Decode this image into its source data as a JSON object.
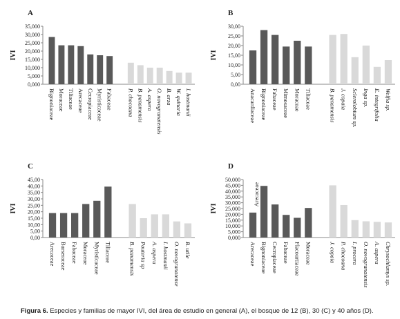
{
  "chart_data": [
    {
      "type": "bar",
      "title": "A",
      "ylabel": "IVI",
      "categories": [
        "Bignoniaceae",
        "Moraceae",
        "Tiliaceae",
        "Arecaceae",
        "Cecropiaceae",
        "Myristicaceae",
        "Fabaceae",
        "P. chocoana",
        "B. panamensis",
        "A. aspera",
        "O. novogranatensis",
        "B. arza",
        "W. quinaria",
        "I. hostmanii"
      ],
      "values": [
        28.5,
        23.5,
        23.5,
        23,
        18,
        17.5,
        17,
        13,
        11.5,
        10,
        10,
        8,
        7,
        7
      ],
      "colors": [
        "#595959",
        "#595959",
        "#595959",
        "#595959",
        "#595959",
        "#595959",
        "#595959",
        "#d9d9d9",
        "#d9d9d9",
        "#d9d9d9",
        "#d9d9d9",
        "#d9d9d9",
        "#d9d9d9",
        "#d9d9d9"
      ],
      "ylim": [
        0,
        35
      ],
      "yticks": [
        {
          "value": 0,
          "label": "0,000"
        },
        {
          "value": 5,
          "label": "5,000"
        },
        {
          "value": 10,
          "label": "10,000"
        },
        {
          "value": 15,
          "label": "15,000"
        },
        {
          "value": 20,
          "label": "20,000"
        },
        {
          "value": 25,
          "label": "25,000"
        },
        {
          "value": 30,
          "label": "30,000"
        },
        {
          "value": 35,
          "label": "35,000"
        }
      ]
    },
    {
      "type": "bar",
      "title": "B",
      "ylabel": "IVI",
      "categories": [
        "Anacardiaceae",
        "Bignoniaceae",
        "Fabaceae",
        "Mimosaceae",
        "Moraceae",
        "Tiliaceae",
        "B. panamensis",
        "J. copaia",
        "Sclerolobium sp.",
        "Inga sp.",
        "E. integrifolia",
        "Welfia sp."
      ],
      "values": [
        17.5,
        28,
        25.5,
        19.5,
        22.5,
        19.5,
        25.5,
        26,
        14,
        20,
        9,
        12.5
      ],
      "colors": [
        "#595959",
        "#595959",
        "#595959",
        "#595959",
        "#595959",
        "#595959",
        "#d9d9d9",
        "#d9d9d9",
        "#d9d9d9",
        "#d9d9d9",
        "#d9d9d9",
        "#d9d9d9"
      ],
      "ylim": [
        0,
        30
      ],
      "yticks": [
        {
          "value": 0,
          "label": "0,00"
        },
        {
          "value": 5,
          "label": "5,00"
        },
        {
          "value": 10,
          "label": "10,00"
        },
        {
          "value": 15,
          "label": "15,00"
        },
        {
          "value": 20,
          "label": "20,00"
        },
        {
          "value": 25,
          "label": "25,00"
        },
        {
          "value": 30,
          "label": "30,00"
        }
      ]
    },
    {
      "type": "bar",
      "title": "C",
      "ylabel": "IVI",
      "categories": [
        "Arecaceae",
        "Burseraceae",
        "Fabaceae",
        "Moraceae",
        "Myristicaceae",
        "Tiliaceae",
        "B. panamensis",
        "Pouteria sp",
        "A. aspera",
        "I. hostmanii",
        "O. novogranatense",
        "B. utile"
      ],
      "values": [
        19,
        19,
        19,
        26,
        28.5,
        39.5,
        26,
        15,
        18,
        18,
        12.5,
        11
      ],
      "colors": [
        "#595959",
        "#595959",
        "#595959",
        "#595959",
        "#595959",
        "#595959",
        "#d9d9d9",
        "#d9d9d9",
        "#d9d9d9",
        "#d9d9d9",
        "#d9d9d9",
        "#d9d9d9"
      ],
      "ylim": [
        0,
        45
      ],
      "yticks": [
        {
          "value": 0,
          "label": "0,00"
        },
        {
          "value": 5,
          "label": "5,00"
        },
        {
          "value": 10,
          "label": "10,00"
        },
        {
          "value": 15,
          "label": "15,00"
        },
        {
          "value": 20,
          "label": "20,00"
        },
        {
          "value": 25,
          "label": "25,00"
        },
        {
          "value": 30,
          "label": "30,00"
        },
        {
          "value": 35,
          "label": "35,00"
        },
        {
          "value": 40,
          "label": "40,00"
        },
        {
          "value": 45,
          "label": "45,00"
        }
      ]
    },
    {
      "type": "bar",
      "title": "D",
      "ylabel": "IVI",
      "annotation": "Arecaceae",
      "categories": [
        "Arecaceae",
        "Bignoniaceae",
        "Cecropiaceae",
        "Fabaceae",
        "Flacourtiaceae",
        "Moraceae",
        "J. copaia",
        "P. chocoana",
        "I. procera",
        "O. novogranatensis",
        "A. aspera",
        "Chrysochlamys sp."
      ],
      "values": [
        21.5,
        44.5,
        28.5,
        19.5,
        17,
        25.5,
        45,
        28,
        15,
        14,
        13.5,
        13
      ],
      "colors": [
        "#595959",
        "#595959",
        "#595959",
        "#595959",
        "#595959",
        "#595959",
        "#d9d9d9",
        "#d9d9d9",
        "#d9d9d9",
        "#d9d9d9",
        "#d9d9d9",
        "#d9d9d9"
      ],
      "ylim": [
        0,
        50
      ],
      "yticks": [
        {
          "value": 0,
          "label": "0,000"
        },
        {
          "value": 5,
          "label": "5,000"
        },
        {
          "value": 10,
          "label": "10,000"
        },
        {
          "value": 15,
          "label": "15,000"
        },
        {
          "value": 20,
          "label": "20,000"
        },
        {
          "value": 25,
          "label": "25,000"
        },
        {
          "value": 30,
          "label": "30,000"
        },
        {
          "value": 35,
          "label": "35,000"
        },
        {
          "value": 40,
          "label": "40,000"
        },
        {
          "value": 45,
          "label": "45,000"
        },
        {
          "value": 50,
          "label": "50,000"
        }
      ]
    }
  ],
  "caption_label": "Figura 6.",
  "caption_text": "Especies y familias de mayor IVI, del área de estudio en general (A), el bosque de 12 (B), 30 (C) y 40 años (D)."
}
